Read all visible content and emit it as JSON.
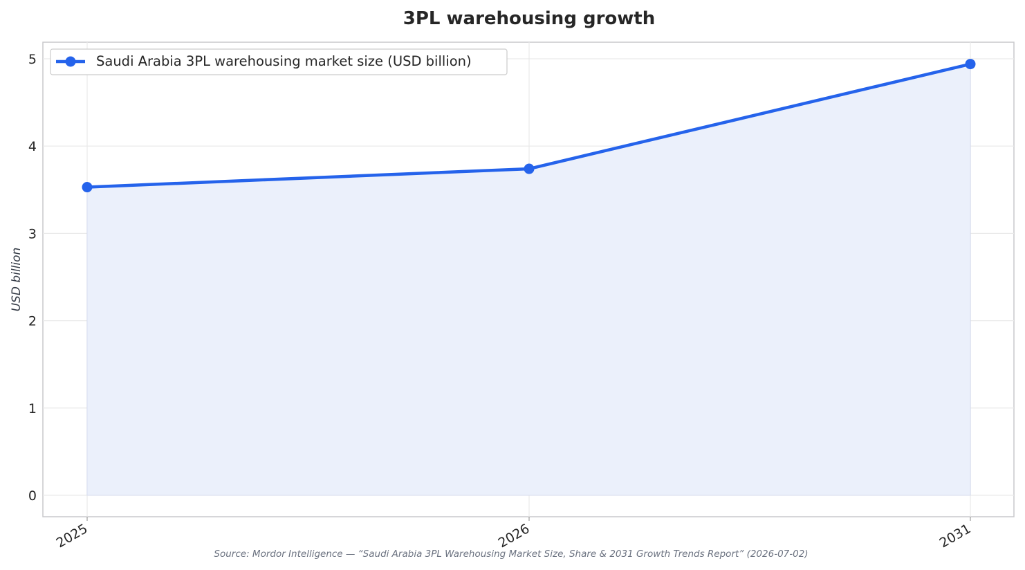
{
  "chart_data": {
    "type": "area",
    "title": "3PL warehousing growth",
    "xlabel": "",
    "ylabel": "USD billion",
    "categories": [
      "2025",
      "2026",
      "2031"
    ],
    "series": [
      {
        "name": "Saudi Arabia 3PL warehousing market size (USD billion)",
        "values": [
          3.53,
          3.74,
          4.94
        ]
      }
    ],
    "ylim": [
      0,
      5
    ],
    "yticks": [
      "0",
      "1",
      "2",
      "3",
      "4",
      "5"
    ],
    "grid": true,
    "legend_position": "top-left",
    "source": "Source: Mordor Intelligence — “Saudi Arabia 3PL Warehousing Market Size, Share & 2031 Growth Trends Report” (2026-07-02)",
    "colors": {
      "line": "#2563eb",
      "fill": "#ebf0fb",
      "grid": "#e9e9e9",
      "frame": "#c8c8cc"
    }
  }
}
